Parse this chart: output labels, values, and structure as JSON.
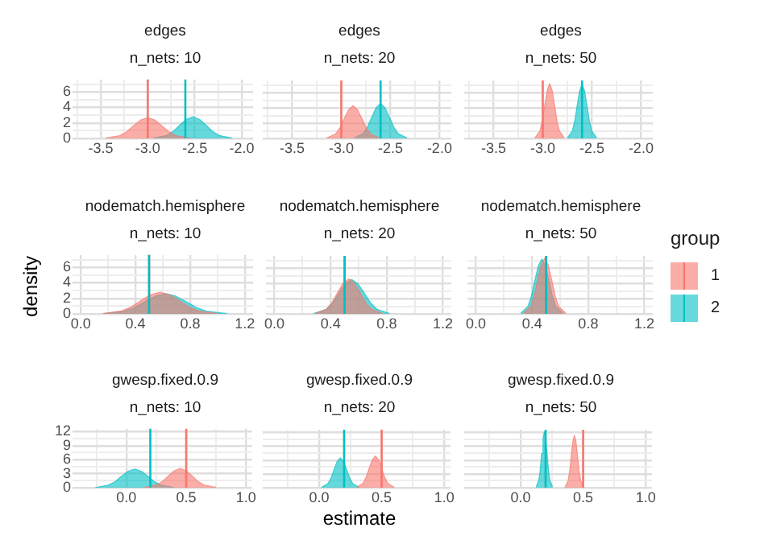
{
  "chart_data": [
    {
      "type": "area",
      "title": "edges",
      "subtitle": "n_nets: 10",
      "xlim": [
        -3.8,
        -1.88
      ],
      "xticks": [
        {
          "value": -3.75,
          "label": null
        },
        -3.5,
        {
          "value": -3.25,
          "label": null
        },
        {
          "value": -3,
          "label": "-3.0"
        },
        {
          "value": -2.75,
          "label": null
        },
        -2.5,
        {
          "value": -2.25,
          "label": null
        },
        {
          "value": -2,
          "label": "-2.0"
        }
      ],
      "ylim": [
        0,
        7.6
      ],
      "yticks": [
        0,
        {
          "value": 1,
          "label": null
        },
        2,
        {
          "value": 3,
          "label": null
        },
        4,
        {
          "value": 5,
          "label": null
        },
        6,
        {
          "value": 7,
          "label": null
        }
      ],
      "grid": true,
      "series": [
        {
          "color": "#f8766d",
          "x": [
            -3.45,
            -3.3,
            -3.225,
            -3.15,
            -3.075,
            -3.0,
            -2.925,
            -2.85,
            -2.775,
            -2.7,
            -2.55
          ],
          "values": [
            0.03,
            0.36,
            0.86,
            1.65,
            2.38,
            2.7,
            2.38,
            1.65,
            0.86,
            0.36,
            0.03
          ]
        },
        {
          "color": "#00bfc4",
          "x": [
            -2.94,
            -2.8,
            -2.73,
            -2.66,
            -2.59,
            -2.52,
            -2.45,
            -2.38,
            -2.31,
            -2.24,
            -2.1
          ],
          "values": [
            0.03,
            0.38,
            0.9,
            1.71,
            2.46,
            2.8,
            2.46,
            1.71,
            0.9,
            0.38,
            0.03
          ]
        }
      ],
      "ref_lines": [
        {
          "axis": "x",
          "value": -3,
          "color": "#f8766d"
        },
        {
          "axis": "x",
          "value": -2.6,
          "color": "#00bfc4"
        }
      ]
    },
    {
      "type": "area",
      "title": "edges",
      "subtitle": "n_nets: 20",
      "xlim": [
        -3.8,
        -1.88
      ],
      "xticks": [
        {
          "value": -3.75,
          "label": null
        },
        -3.5,
        {
          "value": -3.25,
          "label": null
        },
        {
          "value": -3,
          "label": "-3.0"
        },
        {
          "value": -2.75,
          "label": null
        },
        -2.5,
        {
          "value": -2.25,
          "label": null
        },
        {
          "value": -2,
          "label": "-2.0"
        }
      ],
      "ylim": [
        0,
        7.6
      ],
      "yticks": [
        0,
        {
          "value": 1,
          "label": null
        },
        2,
        {
          "value": 3,
          "label": null
        },
        4,
        {
          "value": 5,
          "label": null
        },
        6,
        {
          "value": 7,
          "label": null
        }
      ],
      "grid": true,
      "tick_labels": "x",
      "series": [
        {
          "color": "#f8766d",
          "x": [
            -3.15,
            -3.06,
            -3.015,
            -2.97,
            -2.925,
            -2.88,
            -2.835,
            -2.79,
            -2.745,
            -2.7,
            -2.61
          ],
          "values": [
            0.05,
            0.58,
            1.38,
            2.62,
            3.78,
            4.3,
            3.78,
            2.62,
            1.38,
            0.58,
            0.05
          ]
        },
        {
          "color": "#00bfc4",
          "x": [
            -2.87,
            -2.78,
            -2.735,
            -2.69,
            -2.645,
            -2.6,
            -2.555,
            -2.51,
            -2.465,
            -2.42,
            -2.33
          ],
          "values": [
            0.05,
            0.62,
            1.47,
            2.81,
            4.05,
            4.6,
            4.05,
            2.81,
            1.47,
            0.62,
            0.05
          ]
        }
      ],
      "ref_lines": [
        {
          "axis": "x",
          "value": -3,
          "color": "#f8766d"
        },
        {
          "axis": "x",
          "value": -2.6,
          "color": "#00bfc4"
        }
      ]
    },
    {
      "type": "area",
      "title": "edges",
      "subtitle": "n_nets: 50",
      "xlim": [
        -3.8,
        -1.88
      ],
      "xticks": [
        {
          "value": -3.75,
          "label": null
        },
        -3.5,
        {
          "value": -3.25,
          "label": null
        },
        {
          "value": -3,
          "label": "-3.0"
        },
        {
          "value": -2.75,
          "label": null
        },
        -2.5,
        {
          "value": -2.25,
          "label": null
        },
        {
          "value": -2,
          "label": "-2.0"
        }
      ],
      "ylim": [
        0,
        7.6
      ],
      "yticks": [
        0,
        {
          "value": 1,
          "label": null
        },
        2,
        {
          "value": 3,
          "label": null
        },
        4,
        {
          "value": 5,
          "label": null
        },
        6,
        {
          "value": 7,
          "label": null
        }
      ],
      "grid": true,
      "tick_labels": "x",
      "series": [
        {
          "color": "#f8766d",
          "x": [
            -3.08,
            -3.03,
            -3.005,
            -2.98,
            -2.955,
            -2.93,
            -2.905,
            -2.88,
            -2.855,
            -2.83,
            -2.78
          ],
          "values": [
            0.08,
            0.97,
            2.3,
            4.39,
            6.34,
            7.2,
            6.34,
            4.39,
            2.3,
            0.97,
            0.08
          ]
        },
        {
          "color": "#00bfc4",
          "x": [
            -2.75,
            -2.7,
            -2.675,
            -2.65,
            -2.625,
            -2.6,
            -2.575,
            -2.55,
            -2.525,
            -2.5,
            -2.45
          ],
          "values": [
            0.08,
            0.96,
            2.27,
            4.33,
            6.25,
            7.1,
            6.25,
            4.33,
            2.27,
            0.96,
            0.08
          ]
        }
      ],
      "ref_lines": [
        {
          "axis": "x",
          "value": -3,
          "color": "#f8766d"
        },
        {
          "axis": "x",
          "value": -2.6,
          "color": "#00bfc4"
        }
      ]
    },
    {
      "type": "area",
      "title": "nodematch.hemisphere",
      "subtitle": "n_nets: 10",
      "ylabel": "density",
      "xlim": [
        -0.06,
        1.26
      ],
      "xticks": [
        {
          "value": 0,
          "label": "0.0"
        },
        {
          "value": 0.2,
          "label": null
        },
        0.4,
        {
          "value": 0.6,
          "label": null
        },
        0.8,
        {
          "value": 1,
          "label": null
        },
        1.2
      ],
      "ylim": [
        0,
        7.6
      ],
      "yticks": [
        0,
        {
          "value": 1,
          "label": null
        },
        2,
        {
          "value": 3,
          "label": null
        },
        4,
        {
          "value": 5,
          "label": null
        },
        6,
        {
          "value": 7,
          "label": null
        }
      ],
      "grid": true,
      "series": [
        {
          "color": "#f8766d",
          "x": [
            0.16,
            0.3,
            0.37,
            0.44,
            0.51,
            0.58,
            0.65,
            0.72,
            0.79,
            0.86,
            1.0
          ],
          "values": [
            0.03,
            0.38,
            0.9,
            1.71,
            2.46,
            2.8,
            2.46,
            1.71,
            0.9,
            0.38,
            0.03
          ]
        },
        {
          "color": "#00bfc4",
          "x": [
            0.17,
            0.32,
            0.395,
            0.47,
            0.545,
            0.62,
            0.695,
            0.77,
            0.845,
            0.92,
            1.07
          ],
          "values": [
            0.03,
            0.35,
            0.83,
            1.59,
            2.29,
            2.6,
            2.29,
            1.59,
            0.83,
            0.35,
            0.03
          ]
        }
      ],
      "ref_lines": [
        {
          "axis": "x",
          "value": 0.5,
          "color": "#f8766d"
        },
        {
          "axis": "x",
          "value": 0.5,
          "color": "#00bfc4"
        }
      ]
    },
    {
      "type": "area",
      "title": "nodematch.hemisphere",
      "subtitle": "n_nets: 20",
      "xlim": [
        -0.06,
        1.26
      ],
      "xticks": [
        {
          "value": 0,
          "label": "0.0"
        },
        {
          "value": 0.2,
          "label": null
        },
        0.4,
        {
          "value": 0.6,
          "label": null
        },
        0.8,
        {
          "value": 1,
          "label": null
        },
        1.2
      ],
      "ylim": [
        0,
        7.6
      ],
      "yticks": [
        0,
        {
          "value": 1,
          "label": null
        },
        2,
        {
          "value": 3,
          "label": null
        },
        4,
        {
          "value": 5,
          "label": null
        },
        6,
        {
          "value": 7,
          "label": null
        }
      ],
      "grid": true,
      "tick_labels": "x",
      "series": [
        {
          "color": "#f8766d",
          "x": [
            0.29,
            0.37,
            0.41,
            0.45,
            0.49,
            0.53,
            0.57,
            0.61,
            0.65,
            0.69,
            0.77
          ],
          "values": [
            0.05,
            0.62,
            1.47,
            2.81,
            4.05,
            4.6,
            4.05,
            2.81,
            1.47,
            0.62,
            0.05
          ]
        },
        {
          "color": "#00bfc4",
          "x": [
            0.28,
            0.37,
            0.415,
            0.46,
            0.505,
            0.55,
            0.595,
            0.64,
            0.685,
            0.73,
            0.82
          ],
          "values": [
            0.05,
            0.61,
            1.44,
            2.75,
            3.96,
            4.5,
            3.96,
            2.75,
            1.44,
            0.61,
            0.05
          ]
        }
      ],
      "ref_lines": [
        {
          "axis": "x",
          "value": 0.5,
          "color": "#f8766d"
        },
        {
          "axis": "x",
          "value": 0.5,
          "color": "#00bfc4"
        }
      ]
    },
    {
      "type": "area",
      "title": "nodematch.hemisphere",
      "subtitle": "n_nets: 50",
      "legend": "right",
      "legend_title": "group",
      "xlim": [
        -0.06,
        1.26
      ],
      "xticks": [
        {
          "value": 0,
          "label": "0.0"
        },
        {
          "value": 0.2,
          "label": null
        },
        0.4,
        {
          "value": 0.6,
          "label": null
        },
        0.8,
        {
          "value": 1,
          "label": null
        },
        1.2
      ],
      "ylim": [
        0,
        7.6
      ],
      "yticks": [
        0,
        {
          "value": 1,
          "label": null
        },
        2,
        {
          "value": 3,
          "label": null
        },
        4,
        {
          "value": 5,
          "label": null
        },
        6,
        {
          "value": 7,
          "label": null
        }
      ],
      "grid": true,
      "tick_labels": "x",
      "series": [
        {
          "name": "1",
          "color": "#f8766d",
          "x": [
            0.34,
            0.39,
            0.415,
            0.44,
            0.465,
            0.49,
            0.515,
            0.54,
            0.565,
            0.59,
            0.64
          ],
          "values": [
            0.08,
            0.99,
            2.34,
            4.45,
            6.42,
            7.3,
            6.42,
            4.45,
            2.34,
            0.99,
            0.08
          ]
        },
        {
          "name": "2",
          "color": "#00bfc4",
          "x": [
            0.32,
            0.37,
            0.395,
            0.42,
            0.445,
            0.47,
            0.495,
            0.52,
            0.545,
            0.57,
            0.62
          ],
          "values": [
            0.08,
            0.97,
            2.3,
            4.39,
            6.34,
            7.2,
            6.34,
            4.39,
            2.3,
            0.97,
            0.08
          ]
        }
      ],
      "ref_lines": [
        {
          "axis": "x",
          "value": 0.5,
          "color": "#f8766d"
        },
        {
          "axis": "x",
          "value": 0.5,
          "color": "#00bfc4"
        }
      ]
    },
    {
      "type": "area",
      "title": "gwesp.fixed.0.9",
      "subtitle": "n_nets: 10",
      "xlim": [
        -0.45,
        1.05
      ],
      "xticks": [
        {
          "value": -0.25,
          "label": null
        },
        {
          "value": 0,
          "label": "0.0"
        },
        {
          "value": 0.25,
          "label": null
        },
        0.5,
        {
          "value": 0.75,
          "label": null
        },
        {
          "value": 1,
          "label": "1.0"
        }
      ],
      "ylim": [
        0,
        12.6
      ],
      "yticks": [
        0,
        {
          "value": 1.5,
          "label": null
        },
        3,
        {
          "value": 4.5,
          "label": null
        },
        6,
        {
          "value": 7.5,
          "label": null
        },
        9,
        {
          "value": 10.5,
          "label": null
        },
        12
      ],
      "grid": true,
      "series": [
        {
          "color": "#f8766d",
          "x": [
            0.15,
            0.25,
            0.3,
            0.35,
            0.4,
            0.45,
            0.5,
            0.55,
            0.6,
            0.65,
            0.75
          ],
          "values": [
            0.05,
            0.55,
            1.31,
            2.5,
            3.61,
            4.1,
            3.61,
            2.5,
            1.31,
            0.55,
            0.05
          ]
        },
        {
          "color": "#00bfc4",
          "x": [
            -0.26,
            -0.15,
            -0.095,
            -0.04,
            0.015,
            0.07,
            0.125,
            0.18,
            0.235,
            0.29,
            0.4
          ],
          "values": [
            0.04,
            0.54,
            1.28,
            2.44,
            3.52,
            4,
            3.52,
            2.44,
            1.28,
            0.54,
            0.04
          ]
        }
      ],
      "ref_lines": [
        {
          "axis": "x",
          "value": 0.5,
          "color": "#f8766d"
        },
        {
          "axis": "x",
          "value": 0.2,
          "color": "#00bfc4"
        }
      ]
    },
    {
      "type": "area",
      "title": "gwesp.fixed.0.9",
      "subtitle": "n_nets: 20",
      "xlabel": "estimate",
      "xlim": [
        -0.45,
        1.05
      ],
      "xticks": [
        {
          "value": -0.25,
          "label": null
        },
        {
          "value": 0,
          "label": "0.0"
        },
        {
          "value": 0.25,
          "label": null
        },
        0.5,
        {
          "value": 0.75,
          "label": null
        },
        {
          "value": 1,
          "label": "1.0"
        }
      ],
      "ylim": [
        0,
        12.6
      ],
      "yticks": [
        0,
        {
          "value": 1.5,
          "label": null
        },
        3,
        {
          "value": 4.5,
          "label": null
        },
        6,
        {
          "value": 7.5,
          "label": null
        },
        9,
        {
          "value": 10.5,
          "label": null
        },
        12
      ],
      "grid": true,
      "tick_labels": "x",
      "series": [
        {
          "color": "#f8766d",
          "x": [
            0.3,
            0.35,
            0.375,
            0.4,
            0.425,
            0.45,
            0.475,
            0.5,
            0.525,
            0.55,
            0.6
          ],
          "values": [
            0.08,
            0.93,
            2.21,
            4.21,
            6.07,
            6.9,
            6.07,
            4.21,
            2.21,
            0.93,
            0.08
          ]
        },
        {
          "color": "#00bfc4",
          "x": [
            0.02,
            0.07,
            0.095,
            0.12,
            0.145,
            0.17,
            0.195,
            0.22,
            0.245,
            0.27,
            0.32
          ],
          "values": [
            0.07,
            0.88,
            2.08,
            3.97,
            5.72,
            6.5,
            5.72,
            3.97,
            2.08,
            0.88,
            0.07
          ]
        }
      ],
      "ref_lines": [
        {
          "axis": "x",
          "value": 0.5,
          "color": "#f8766d"
        },
        {
          "axis": "x",
          "value": 0.2,
          "color": "#00bfc4"
        }
      ]
    },
    {
      "type": "area",
      "title": "gwesp.fixed.0.9",
      "subtitle": "n_nets: 50",
      "xlim": [
        -0.45,
        1.05
      ],
      "xticks": [
        {
          "value": -0.25,
          "label": null
        },
        {
          "value": 0,
          "label": "0.0"
        },
        {
          "value": 0.25,
          "label": null
        },
        0.5,
        {
          "value": 0.75,
          "label": null
        },
        {
          "value": 1,
          "label": "1.0"
        }
      ],
      "ylim": [
        0,
        12.6
      ],
      "yticks": [
        0,
        {
          "value": 1.5,
          "label": null
        },
        3,
        {
          "value": 4.5,
          "label": null
        },
        6,
        {
          "value": 7.5,
          "label": null
        },
        9,
        {
          "value": 10.5,
          "label": null
        },
        12
      ],
      "grid": true,
      "tick_labels": "x",
      "series": [
        {
          "color": "#f8766d",
          "x": [
            0.355,
            0.38,
            0.3925,
            0.405,
            0.4175,
            0.43,
            0.4425,
            0.455,
            0.4675,
            0.48,
            0.505
          ],
          "values": [
            0.13,
            1.54,
            3.65,
            6.95,
            10.03,
            11.4,
            10.03,
            6.95,
            3.65,
            1.54,
            0.13
          ]
        },
        {
          "color": "#00bfc4",
          "x": [
            0.124,
            0.146,
            0.157,
            0.168,
            0.179,
            0.19,
            0.201,
            0.212,
            0.223,
            0.234,
            0.256
          ],
          "values": [
            0.13,
            1.65,
            3.9,
            7.44,
            10.74,
            12.2,
            10.74,
            7.44,
            3.9,
            1.65,
            0.13
          ]
        }
      ],
      "ref_lines": [
        {
          "axis": "x",
          "value": 0.5,
          "color": "#f8766d"
        },
        {
          "axis": "x",
          "value": 0.2,
          "color": "#00bfc4"
        }
      ]
    }
  ]
}
